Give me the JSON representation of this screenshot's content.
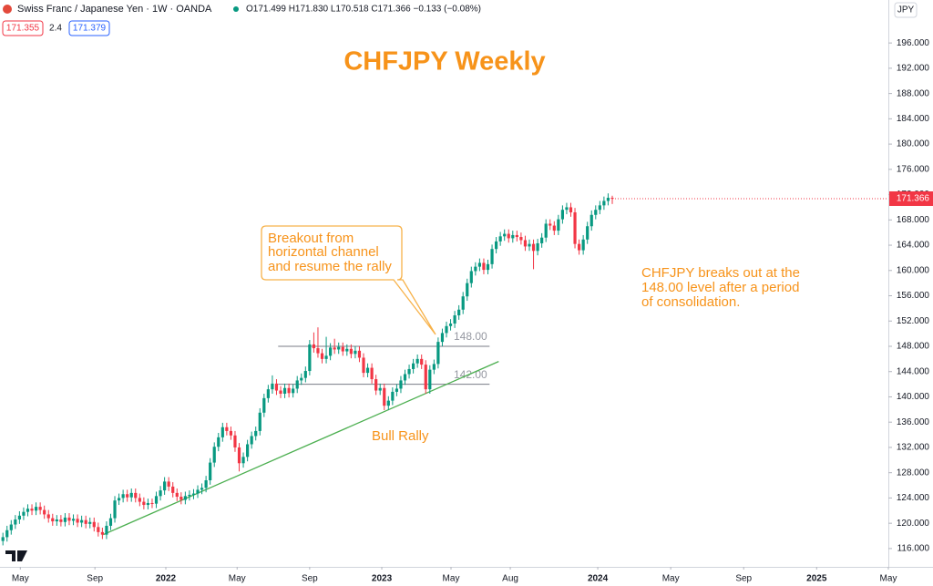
{
  "chart_data": {
    "type": "candlestick",
    "title": "CHFJPY Weekly",
    "header": {
      "symbol": "Swiss Franc / Japanese Yen · 1W · OANDA",
      "ohlc": "O171.499 H171.830 L170.518 C171.366 −0.133 (−0.08%)",
      "bid": "171.355",
      "spread": "2.4",
      "ask": "171.379",
      "currency": "JPY"
    },
    "up_color": "#089981",
    "down_color": "#f23645",
    "open": [
      117.2,
      117.8,
      118.9,
      119.8,
      120.6,
      121.2,
      121.8,
      122.3,
      122.0,
      122.6,
      122.1,
      121.4,
      120.8,
      120.3,
      120.6,
      120.2,
      120.9,
      120.4,
      120.7,
      120.1,
      120.5,
      119.9,
      120.2,
      119.4,
      118.6,
      118.2,
      119.6,
      120.8,
      123.6,
      124.0,
      124.6,
      124.1,
      124.8,
      124.0,
      123.4,
      122.9,
      123.2,
      123.1,
      124.3,
      125.2,
      126.6,
      125.8,
      124.8,
      124.2,
      123.7,
      124.3,
      124.5,
      124.7,
      125.3,
      125.6,
      126.8,
      129.6,
      132.1,
      133.6,
      135.2,
      134.6,
      133.9,
      132.0,
      129.5,
      130.5,
      132.5,
      133.8,
      134.6,
      137.5,
      139.8,
      141.2,
      142.1,
      141.0,
      140.5,
      141.4,
      140.6,
      141.3,
      142.6,
      143.0,
      144.1,
      148.3,
      147.7,
      146.9,
      146.0,
      146.5,
      147.8,
      147.5,
      147.9,
      147.2,
      147.6,
      146.8,
      147.3,
      146.2,
      143.8,
      144.6,
      142.8,
      141.0,
      141.4,
      138.6,
      139.4,
      140.8,
      141.3,
      142.6,
      143.6,
      144.4,
      145.3,
      146.0,
      145.1,
      141.2,
      144.3,
      145.2,
      148.7,
      150.1,
      151.2,
      151.6,
      152.9,
      153.8,
      155.9,
      158.0,
      159.9,
      160.6,
      161.2,
      160.1,
      161.0,
      163.4,
      164.6,
      165.4,
      165.8,
      165.1,
      165.6,
      165.3,
      164.8,
      163.8,
      164.2,
      163.1,
      164.3,
      165.2,
      167.4,
      167.1,
      166.3,
      168.1,
      169.6,
      170.0,
      169.2,
      164.2,
      163.2,
      164.9,
      167.0,
      168.8,
      169.6,
      170.3,
      171.0,
      171.499
    ],
    "high": [
      118.5,
      119.6,
      120.5,
      121.3,
      121.9,
      122.5,
      123.0,
      123.0,
      123.3,
      123.3,
      122.8,
      122.1,
      121.5,
      121.3,
      121.3,
      121.6,
      121.6,
      121.4,
      121.4,
      121.2,
      121.2,
      120.9,
      120.9,
      120.1,
      119.3,
      120.3,
      121.5,
      124.3,
      124.7,
      125.3,
      125.3,
      125.5,
      125.5,
      124.7,
      124.1,
      123.9,
      123.9,
      125.0,
      125.9,
      127.3,
      127.3,
      126.5,
      125.5,
      124.9,
      125.0,
      125.2,
      125.4,
      126.0,
      126.3,
      127.5,
      130.3,
      132.8,
      134.3,
      135.9,
      135.9,
      135.3,
      134.6,
      132.7,
      131.2,
      133.2,
      134.5,
      135.3,
      138.2,
      140.5,
      141.9,
      143.4,
      142.8,
      141.7,
      142.1,
      142.1,
      142.0,
      143.3,
      143.7,
      144.8,
      149.0,
      150.2,
      151.0,
      147.6,
      149.5,
      148.5,
      149.2,
      148.6,
      148.6,
      148.3,
      148.3,
      148.0,
      148.0,
      146.9,
      145.3,
      145.3,
      143.5,
      142.1,
      142.1,
      140.1,
      141.5,
      142.0,
      143.3,
      144.3,
      145.1,
      146.0,
      146.7,
      146.7,
      145.8,
      145.0,
      145.9,
      149.4,
      150.8,
      151.9,
      152.3,
      153.6,
      154.5,
      156.6,
      158.7,
      160.6,
      161.3,
      161.9,
      161.9,
      161.7,
      164.1,
      165.3,
      166.1,
      166.5,
      166.5,
      166.3,
      166.3,
      166.0,
      165.5,
      164.9,
      164.9,
      165.0,
      165.9,
      168.1,
      168.1,
      167.8,
      168.8,
      170.3,
      170.7,
      170.7,
      169.9,
      164.9,
      165.6,
      167.7,
      169.5,
      170.3,
      171.0,
      171.7,
      172.2,
      171.83
    ],
    "low": [
      116.5,
      117.1,
      118.2,
      119.1,
      119.9,
      120.5,
      121.1,
      121.3,
      121.3,
      121.4,
      120.7,
      120.1,
      119.6,
      119.6,
      119.5,
      119.5,
      119.7,
      119.7,
      119.4,
      119.4,
      119.2,
      119.2,
      118.7,
      117.9,
      117.5,
      117.5,
      118.9,
      120.1,
      122.9,
      123.3,
      123.4,
      123.4,
      123.3,
      122.7,
      122.2,
      122.2,
      122.4,
      122.4,
      123.6,
      124.5,
      125.1,
      124.1,
      123.5,
      123.0,
      123.0,
      123.6,
      123.8,
      124.0,
      124.6,
      124.9,
      126.1,
      128.9,
      131.4,
      132.9,
      133.9,
      133.2,
      131.3,
      128.2,
      128.8,
      129.8,
      131.8,
      133.1,
      133.9,
      136.8,
      139.1,
      140.5,
      140.3,
      139.8,
      139.8,
      139.9,
      139.9,
      140.6,
      141.9,
      142.3,
      143.4,
      147.0,
      146.2,
      145.3,
      145.3,
      145.8,
      146.8,
      146.8,
      146.5,
      146.5,
      146.1,
      146.1,
      145.5,
      143.1,
      143.1,
      142.1,
      140.3,
      140.3,
      137.9,
      137.9,
      138.7,
      140.1,
      140.6,
      141.9,
      142.9,
      143.7,
      144.6,
      144.4,
      140.5,
      140.5,
      143.6,
      144.5,
      148.0,
      149.4,
      150.5,
      150.9,
      152.2,
      153.1,
      155.2,
      157.3,
      159.2,
      159.9,
      159.4,
      159.4,
      160.3,
      162.7,
      163.9,
      164.7,
      164.4,
      164.4,
      164.6,
      164.1,
      163.1,
      163.1,
      160.2,
      162.4,
      163.6,
      164.5,
      166.4,
      165.6,
      165.6,
      167.4,
      168.9,
      168.5,
      163.5,
      162.5,
      162.5,
      164.2,
      166.3,
      168.1,
      168.9,
      169.6,
      170.3,
      170.518
    ],
    "close": [
      117.8,
      118.9,
      119.8,
      120.6,
      121.2,
      121.8,
      122.3,
      122.0,
      122.6,
      122.1,
      121.4,
      120.8,
      120.3,
      120.6,
      120.2,
      120.9,
      120.4,
      120.7,
      120.1,
      120.5,
      119.9,
      120.2,
      119.4,
      118.6,
      118.2,
      119.6,
      120.8,
      123.6,
      124.0,
      124.6,
      124.1,
      124.8,
      124.0,
      123.4,
      122.9,
      123.2,
      123.1,
      124.3,
      125.2,
      126.6,
      125.8,
      124.8,
      124.2,
      123.7,
      124.3,
      124.5,
      124.7,
      125.3,
      125.6,
      126.8,
      129.6,
      132.1,
      133.6,
      135.2,
      134.6,
      133.9,
      132.0,
      129.5,
      130.5,
      132.5,
      133.8,
      134.6,
      137.5,
      139.8,
      141.2,
      142.1,
      141.0,
      140.5,
      141.4,
      140.6,
      141.3,
      142.6,
      143.0,
      144.1,
      148.3,
      147.7,
      146.9,
      146.0,
      146.5,
      147.8,
      147.5,
      147.9,
      147.2,
      147.6,
      146.8,
      147.3,
      146.2,
      143.8,
      144.6,
      142.8,
      141.0,
      141.4,
      138.6,
      139.4,
      140.8,
      141.3,
      142.6,
      143.6,
      144.4,
      145.3,
      146.0,
      145.1,
      141.2,
      144.3,
      145.2,
      148.7,
      150.1,
      151.2,
      151.6,
      152.9,
      153.8,
      155.9,
      158.0,
      159.9,
      160.6,
      161.2,
      160.1,
      161.0,
      163.4,
      164.6,
      165.4,
      165.8,
      165.1,
      165.6,
      165.3,
      164.8,
      163.8,
      164.2,
      163.1,
      164.3,
      165.2,
      167.4,
      167.1,
      166.3,
      168.1,
      169.6,
      170.0,
      169.2,
      164.2,
      163.2,
      164.9,
      167.0,
      168.8,
      169.6,
      170.3,
      171.0,
      171.5,
      171.366
    ],
    "xlim": [
      -0.7,
      213.6
    ],
    "xticks": [
      {
        "value": 4.2,
        "label": "May"
      },
      {
        "value": 22.2,
        "label": "Sep"
      },
      {
        "value": 39.3,
        "label": "2022"
      },
      {
        "value": 56.5,
        "label": "May"
      },
      {
        "value": 74,
        "label": "Sep"
      },
      {
        "value": 91.4,
        "label": "2023"
      },
      {
        "value": 108.1,
        "label": "May"
      },
      {
        "value": 122.4,
        "label": "Aug"
      },
      {
        "value": 143.5,
        "label": "2024"
      },
      {
        "value": 161.1,
        "label": "May"
      },
      {
        "value": 178.7,
        "label": "Sep"
      },
      {
        "value": 196.3,
        "label": "2025"
      },
      {
        "value": 213.6,
        "label": "May"
      }
    ],
    "ylim": [
      113.1,
      202.8
    ],
    "yticks": [
      {
        "value": 116,
        "label": "116.000"
      },
      {
        "value": 120,
        "label": "120.000"
      },
      {
        "value": 124,
        "label": "124.000"
      },
      {
        "value": 128,
        "label": "128.000"
      },
      {
        "value": 132,
        "label": "132.000"
      },
      {
        "value": 136,
        "label": "136.000"
      },
      {
        "value": 140,
        "label": "140.000"
      },
      {
        "value": 144,
        "label": "144.000"
      },
      {
        "value": 148,
        "label": "148.000"
      },
      {
        "value": 152,
        "label": "152.000"
      },
      {
        "value": 156,
        "label": "156.000"
      },
      {
        "value": 160,
        "label": "160.000"
      },
      {
        "value": 164,
        "label": "164.000"
      },
      {
        "value": 168,
        "label": "168.000"
      },
      {
        "value": 172,
        "label": "172.000"
      },
      {
        "value": 176,
        "label": "176.000"
      },
      {
        "value": 180,
        "label": "180.000"
      },
      {
        "value": 184,
        "label": "184.000"
      },
      {
        "value": 188,
        "label": "188.000"
      },
      {
        "value": 192,
        "label": "192.000"
      },
      {
        "value": 196,
        "label": "196.000"
      }
    ],
    "levels": [
      {
        "value": 148,
        "label": "148.00",
        "x": [
          66.4,
          117.4
        ]
      },
      {
        "value": 142,
        "label": "142.00",
        "x": [
          66.4,
          117.4
        ]
      }
    ],
    "trendline": {
      "x": [
        24.2,
        119.6
      ],
      "y": [
        118.2,
        145.6
      ],
      "color": "#4caf50"
    },
    "annotations": {
      "callout": [
        "Breakout from",
        "horizontal channel",
        "and resume the rally"
      ],
      "rally": "Bull Rally",
      "note": [
        "CHFJPY breaks out at the",
        "148.00 level after a period",
        "of consolidation."
      ]
    }
  }
}
